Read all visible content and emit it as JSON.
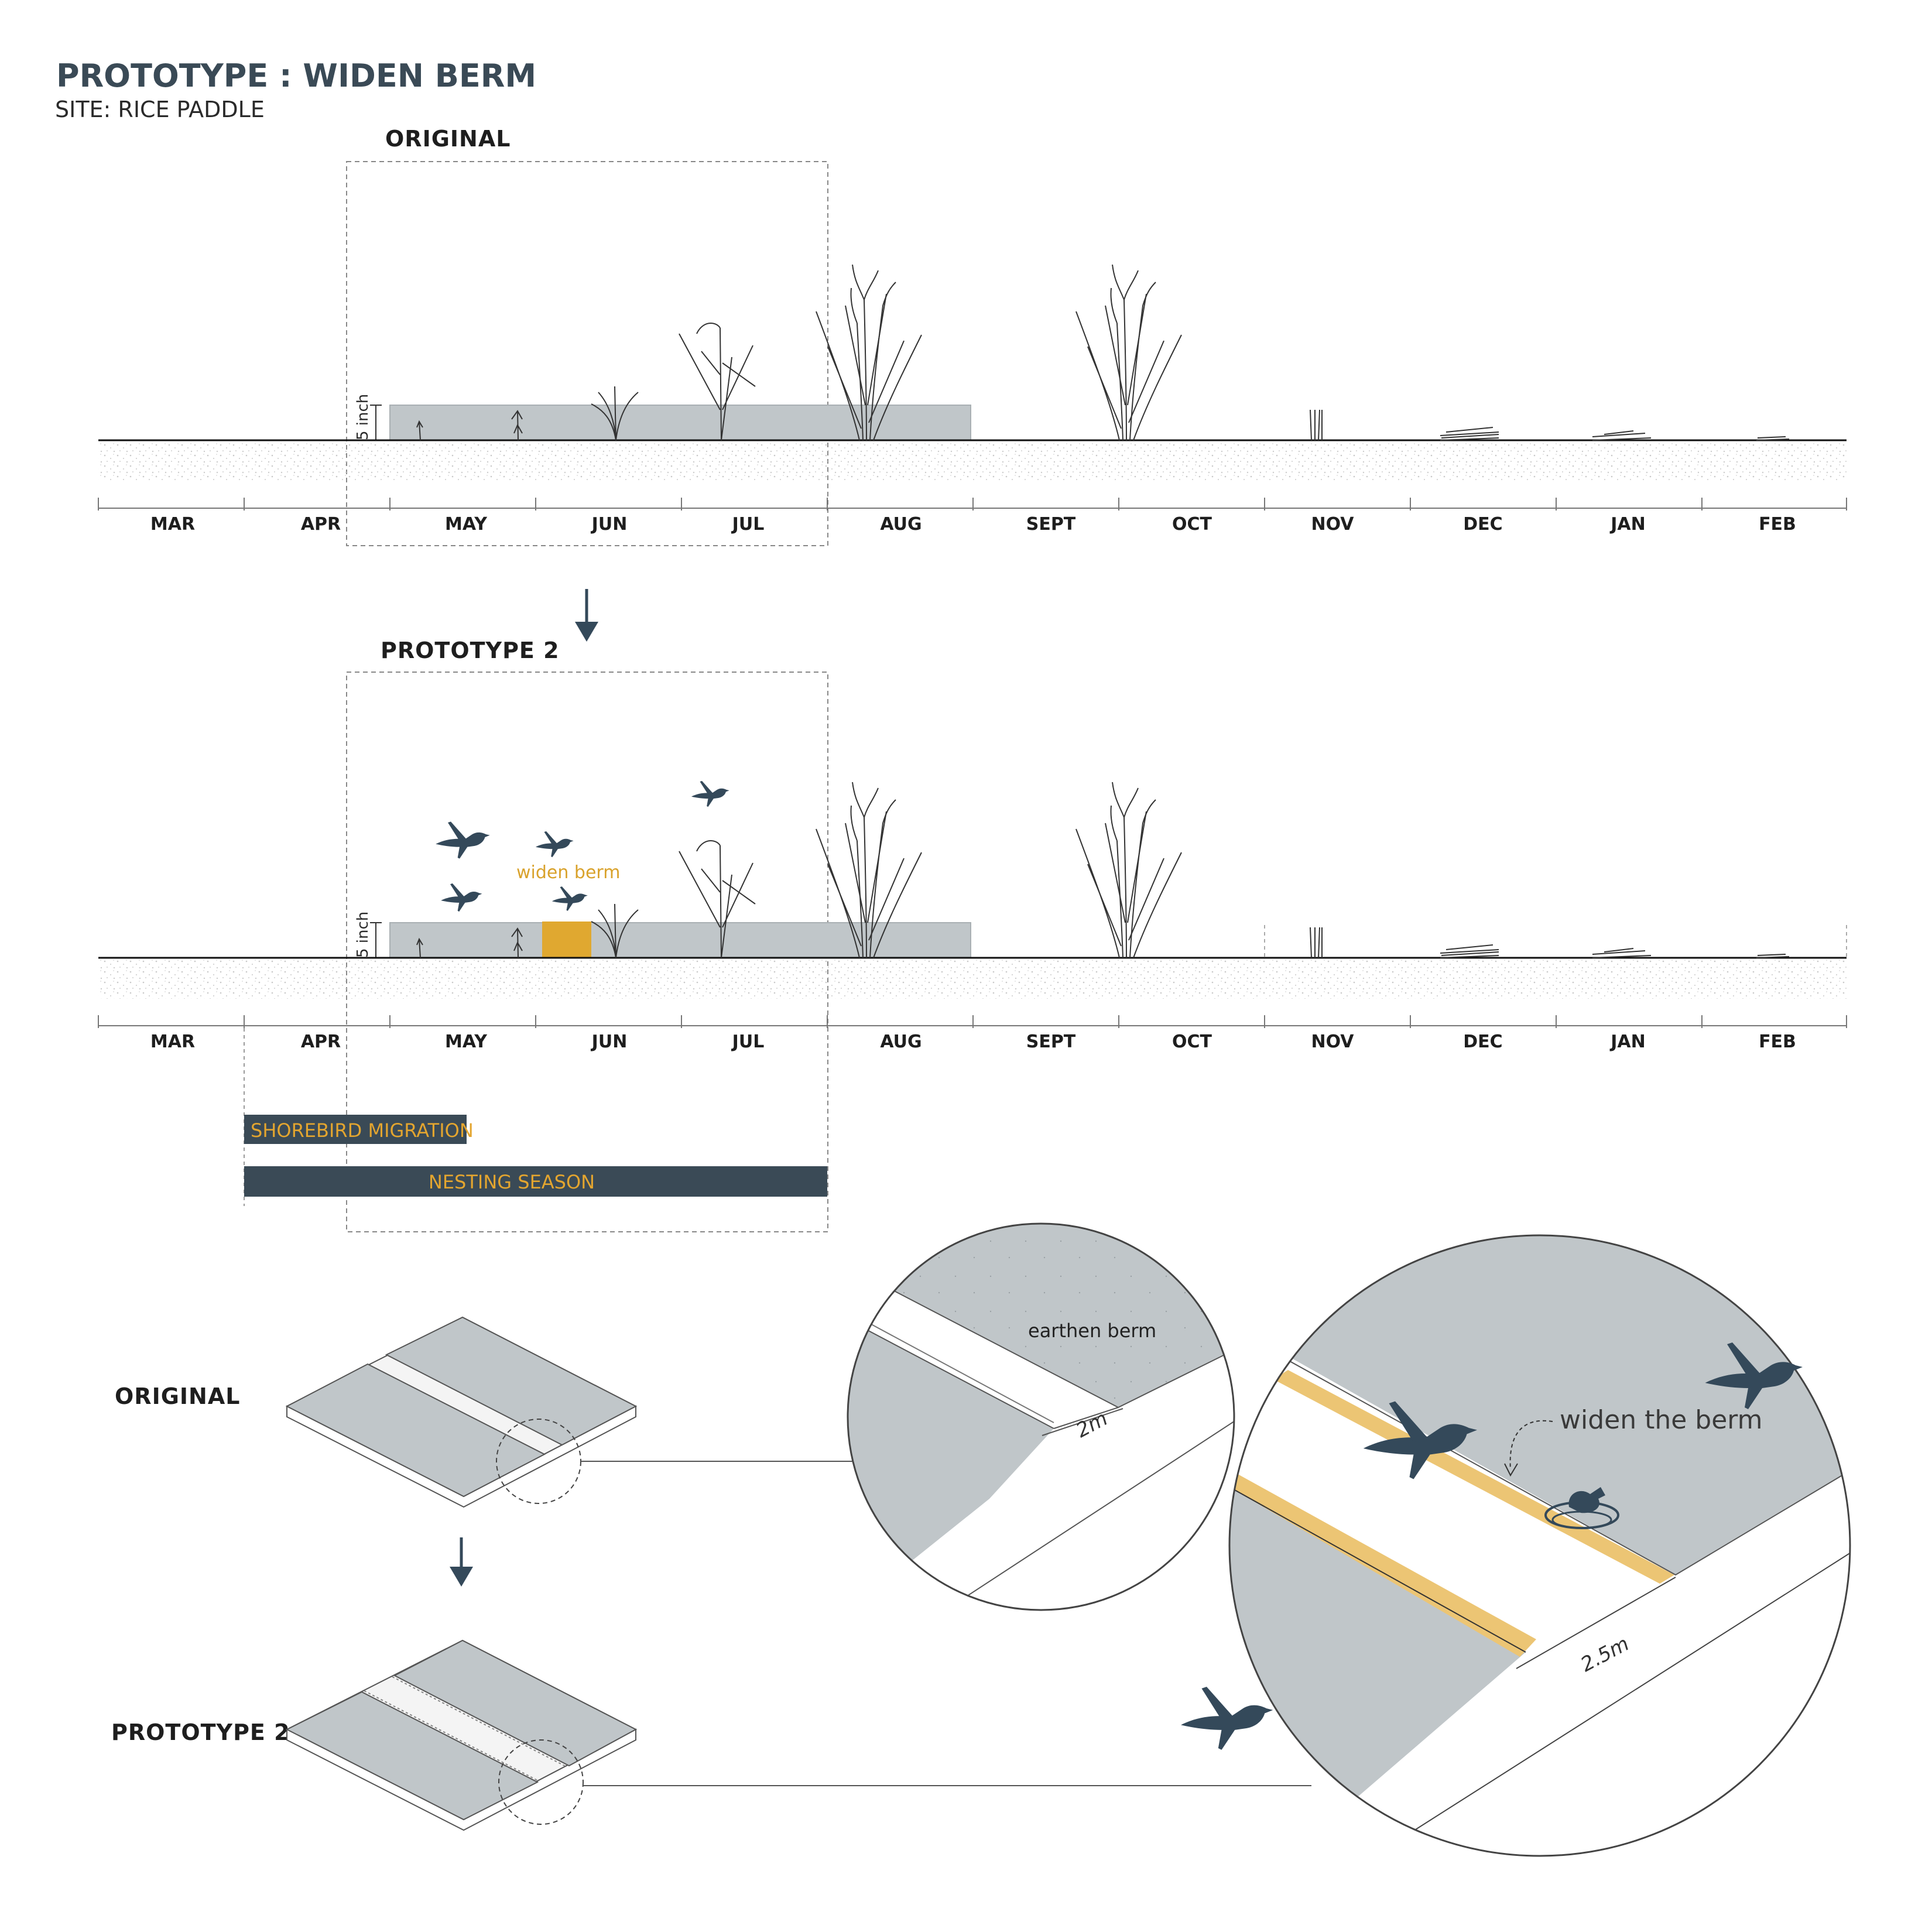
{
  "title": "PROTOTYPE : WIDEN BERM",
  "subtitle": "SITE: RICE PADDLE",
  "timelines": [
    {
      "heading": "ORIGINAL"
    },
    {
      "heading": "PROTOTYPE  2"
    }
  ],
  "months": [
    "MAR",
    "APR",
    "MAY",
    "JUN",
    "JUL",
    "AUG",
    "SEPT",
    "OCT",
    "NOV",
    "DEC",
    "JAN",
    "FEB"
  ],
  "water_depth_label": "5 inch",
  "widen_berm_label": "widen berm",
  "seasons": {
    "shorebird_migration": "SHOREBIRD MIGRATION",
    "nesting_season": "NESTING SEASON"
  },
  "axon": {
    "original_label": "ORIGINAL",
    "prototype_label": "PROTOTYPE  2"
  },
  "detail_original": {
    "berm_label": "earthen berm",
    "width_label": "2m"
  },
  "detail_prototype": {
    "callout": "widen the berm",
    "width_label": "2.5m"
  },
  "colors": {
    "dark_slate": "#3a4a56",
    "water_grey": "#c0c6c9",
    "accent_yellow": "#e3a52f",
    "berm_yellow": "#ecc574"
  },
  "icons": [
    "down-arrow-icon",
    "bird-icon",
    "nest-icon",
    "rice-plant-icon"
  ]
}
